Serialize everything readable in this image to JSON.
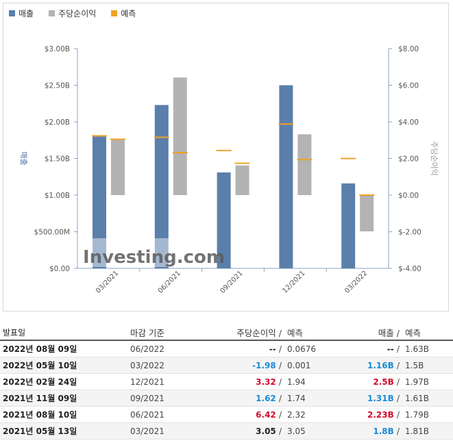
{
  "legend": [
    {
      "label": "매출",
      "color": "#5b7fab"
    },
    {
      "label": "주당순이익",
      "color": "#b3b3b3"
    },
    {
      "label": "예측",
      "color": "#f0a224"
    }
  ],
  "chart_data": {
    "type": "bar",
    "categories": [
      "03/2021",
      "06/2021",
      "09/2021",
      "12/2021",
      "03/2022"
    ],
    "series": [
      {
        "name": "매출",
        "axis": "left",
        "values": [
          1.8,
          2.23,
          1.31,
          2.5,
          1.16
        ],
        "forecast": [
          1.81,
          1.79,
          1.61,
          1.97,
          1.5
        ]
      },
      {
        "name": "주당순이익",
        "axis": "right",
        "values": [
          3.05,
          6.42,
          1.62,
          3.32,
          -1.98
        ],
        "forecast": [
          3.05,
          2.32,
          1.74,
          1.94,
          0.001
        ]
      }
    ],
    "ylabel_left": "매출",
    "ylabel_right": "주당순이익",
    "yticks_left": [
      "$0.00",
      "$500.00M",
      "$1.00B",
      "$1.50B",
      "$2.00B",
      "$2.50B",
      "$3.00B"
    ],
    "yticks_right": [
      "$-4.00",
      "$-2.00",
      "$0.00",
      "$2.00",
      "$4.00",
      "$6.00",
      "$8.00"
    ],
    "ylim_left": [
      0,
      3.0
    ],
    "ylim_right": [
      -4,
      8
    ],
    "grid": false,
    "legend_position": "top-left",
    "watermark": "Investing.com"
  },
  "table": {
    "headers": {
      "date": "발표일",
      "period": "마감 기준",
      "eps": "주당순이익",
      "slash": "/",
      "eps_forecast": "예측",
      "revenue": "매출",
      "revenue_forecast": "예측"
    },
    "rows": [
      {
        "date": "2022년 08월 09일",
        "period": "06/2022",
        "eps": "--",
        "eps_forecast": "0.0676",
        "revenue": "--",
        "revenue_forecast": "1.63B",
        "eps_class": "neu",
        "rev_class": "neu"
      },
      {
        "date": "2022년 05월 10일",
        "period": "03/2022",
        "eps": "-1.98",
        "eps_forecast": "0.001",
        "revenue": "1.16B",
        "revenue_forecast": "1.5B",
        "eps_class": "neg",
        "rev_class": "neg"
      },
      {
        "date": "2022년 02월 24일",
        "period": "12/2021",
        "eps": "3.32",
        "eps_forecast": "1.94",
        "revenue": "2.5B",
        "revenue_forecast": "1.97B",
        "eps_class": "pos",
        "rev_class": "pos"
      },
      {
        "date": "2021년 11월 09일",
        "period": "09/2021",
        "eps": "1.62",
        "eps_forecast": "1.74",
        "revenue": "1.31B",
        "revenue_forecast": "1.61B",
        "eps_class": "neg",
        "rev_class": "neg"
      },
      {
        "date": "2021년 08월 10일",
        "period": "06/2021",
        "eps": "6.42",
        "eps_forecast": "2.32",
        "revenue": "2.23B",
        "revenue_forecast": "1.79B",
        "eps_class": "pos",
        "rev_class": "pos"
      },
      {
        "date": "2021년 05월 13일",
        "period": "03/2021",
        "eps": "3.05",
        "eps_forecast": "3.05",
        "revenue": "1.8B",
        "revenue_forecast": "1.81B",
        "eps_class": "neu",
        "rev_class": "neg"
      }
    ]
  }
}
